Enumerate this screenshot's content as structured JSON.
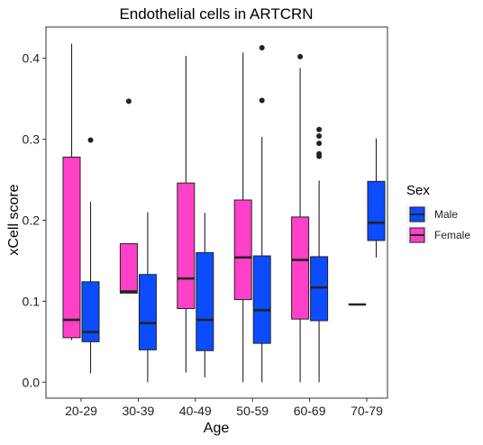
{
  "chart_data": {
    "type": "boxplot",
    "title": "Endothelial cells in ARTCRN",
    "xlabel": "Age",
    "ylabel": "xCell score",
    "categories": [
      "20-29",
      "30-39",
      "40-49",
      "50-59",
      "60-69",
      "70-79"
    ],
    "ylim": [
      -0.0,
      0.44
    ],
    "yticks": [
      0.0,
      0.1,
      0.2,
      0.3,
      0.4
    ],
    "ytick_labels": [
      "0.0",
      "0.1",
      "0.2",
      "0.3",
      "0.4"
    ],
    "grid": false,
    "legend": {
      "title": "Sex",
      "position": "right",
      "entries": [
        {
          "name": "Male",
          "color": "#0B4CFF"
        },
        {
          "name": "Female",
          "color": "#FF40C8"
        }
      ]
    },
    "series": [
      {
        "name": "Female",
        "color": "#FF40C8",
        "boxes": [
          {
            "category": "20-29",
            "min": 0.052,
            "q1": 0.055,
            "median": 0.077,
            "q3": 0.278,
            "max": 0.418,
            "outliers": []
          },
          {
            "category": "30-39",
            "min": 0.11,
            "q1": 0.11,
            "median": 0.112,
            "q3": 0.171,
            "max": 0.171,
            "outliers": [
              0.347
            ]
          },
          {
            "category": "40-49",
            "min": 0.012,
            "q1": 0.091,
            "median": 0.128,
            "q3": 0.246,
            "max": 0.403,
            "outliers": []
          },
          {
            "category": "50-59",
            "min": 0.0,
            "q1": 0.102,
            "median": 0.154,
            "q3": 0.225,
            "max": 0.407,
            "outliers": []
          },
          {
            "category": "60-69",
            "min": 0.0,
            "q1": 0.078,
            "median": 0.151,
            "q3": 0.204,
            "max": 0.388,
            "outliers": [
              0.402
            ]
          },
          {
            "category": "70-79",
            "min": 0.096,
            "q1": 0.096,
            "median": 0.096,
            "q3": 0.096,
            "max": 0.096,
            "outliers": []
          }
        ]
      },
      {
        "name": "Male",
        "color": "#0B4CFF",
        "boxes": [
          {
            "category": "20-29",
            "min": 0.011,
            "q1": 0.05,
            "median": 0.062,
            "q3": 0.124,
            "max": 0.223,
            "outliers": [
              0.299
            ]
          },
          {
            "category": "30-39",
            "min": 0.0,
            "q1": 0.04,
            "median": 0.073,
            "q3": 0.133,
            "max": 0.21,
            "outliers": []
          },
          {
            "category": "40-49",
            "min": 0.006,
            "q1": 0.039,
            "median": 0.077,
            "q3": 0.16,
            "max": 0.209,
            "outliers": []
          },
          {
            "category": "50-59",
            "min": 0.0,
            "q1": 0.048,
            "median": 0.089,
            "q3": 0.156,
            "max": 0.303,
            "outliers": [
              0.348,
              0.413
            ]
          },
          {
            "category": "60-69",
            "min": 0.0,
            "q1": 0.076,
            "median": 0.117,
            "q3": 0.155,
            "max": 0.249,
            "outliers": [
              0.279,
              0.282,
              0.295,
              0.304,
              0.312
            ]
          },
          {
            "category": "70-79",
            "min": 0.154,
            "q1": 0.175,
            "median": 0.197,
            "q3": 0.248,
            "max": 0.301,
            "outliers": []
          }
        ]
      }
    ]
  }
}
